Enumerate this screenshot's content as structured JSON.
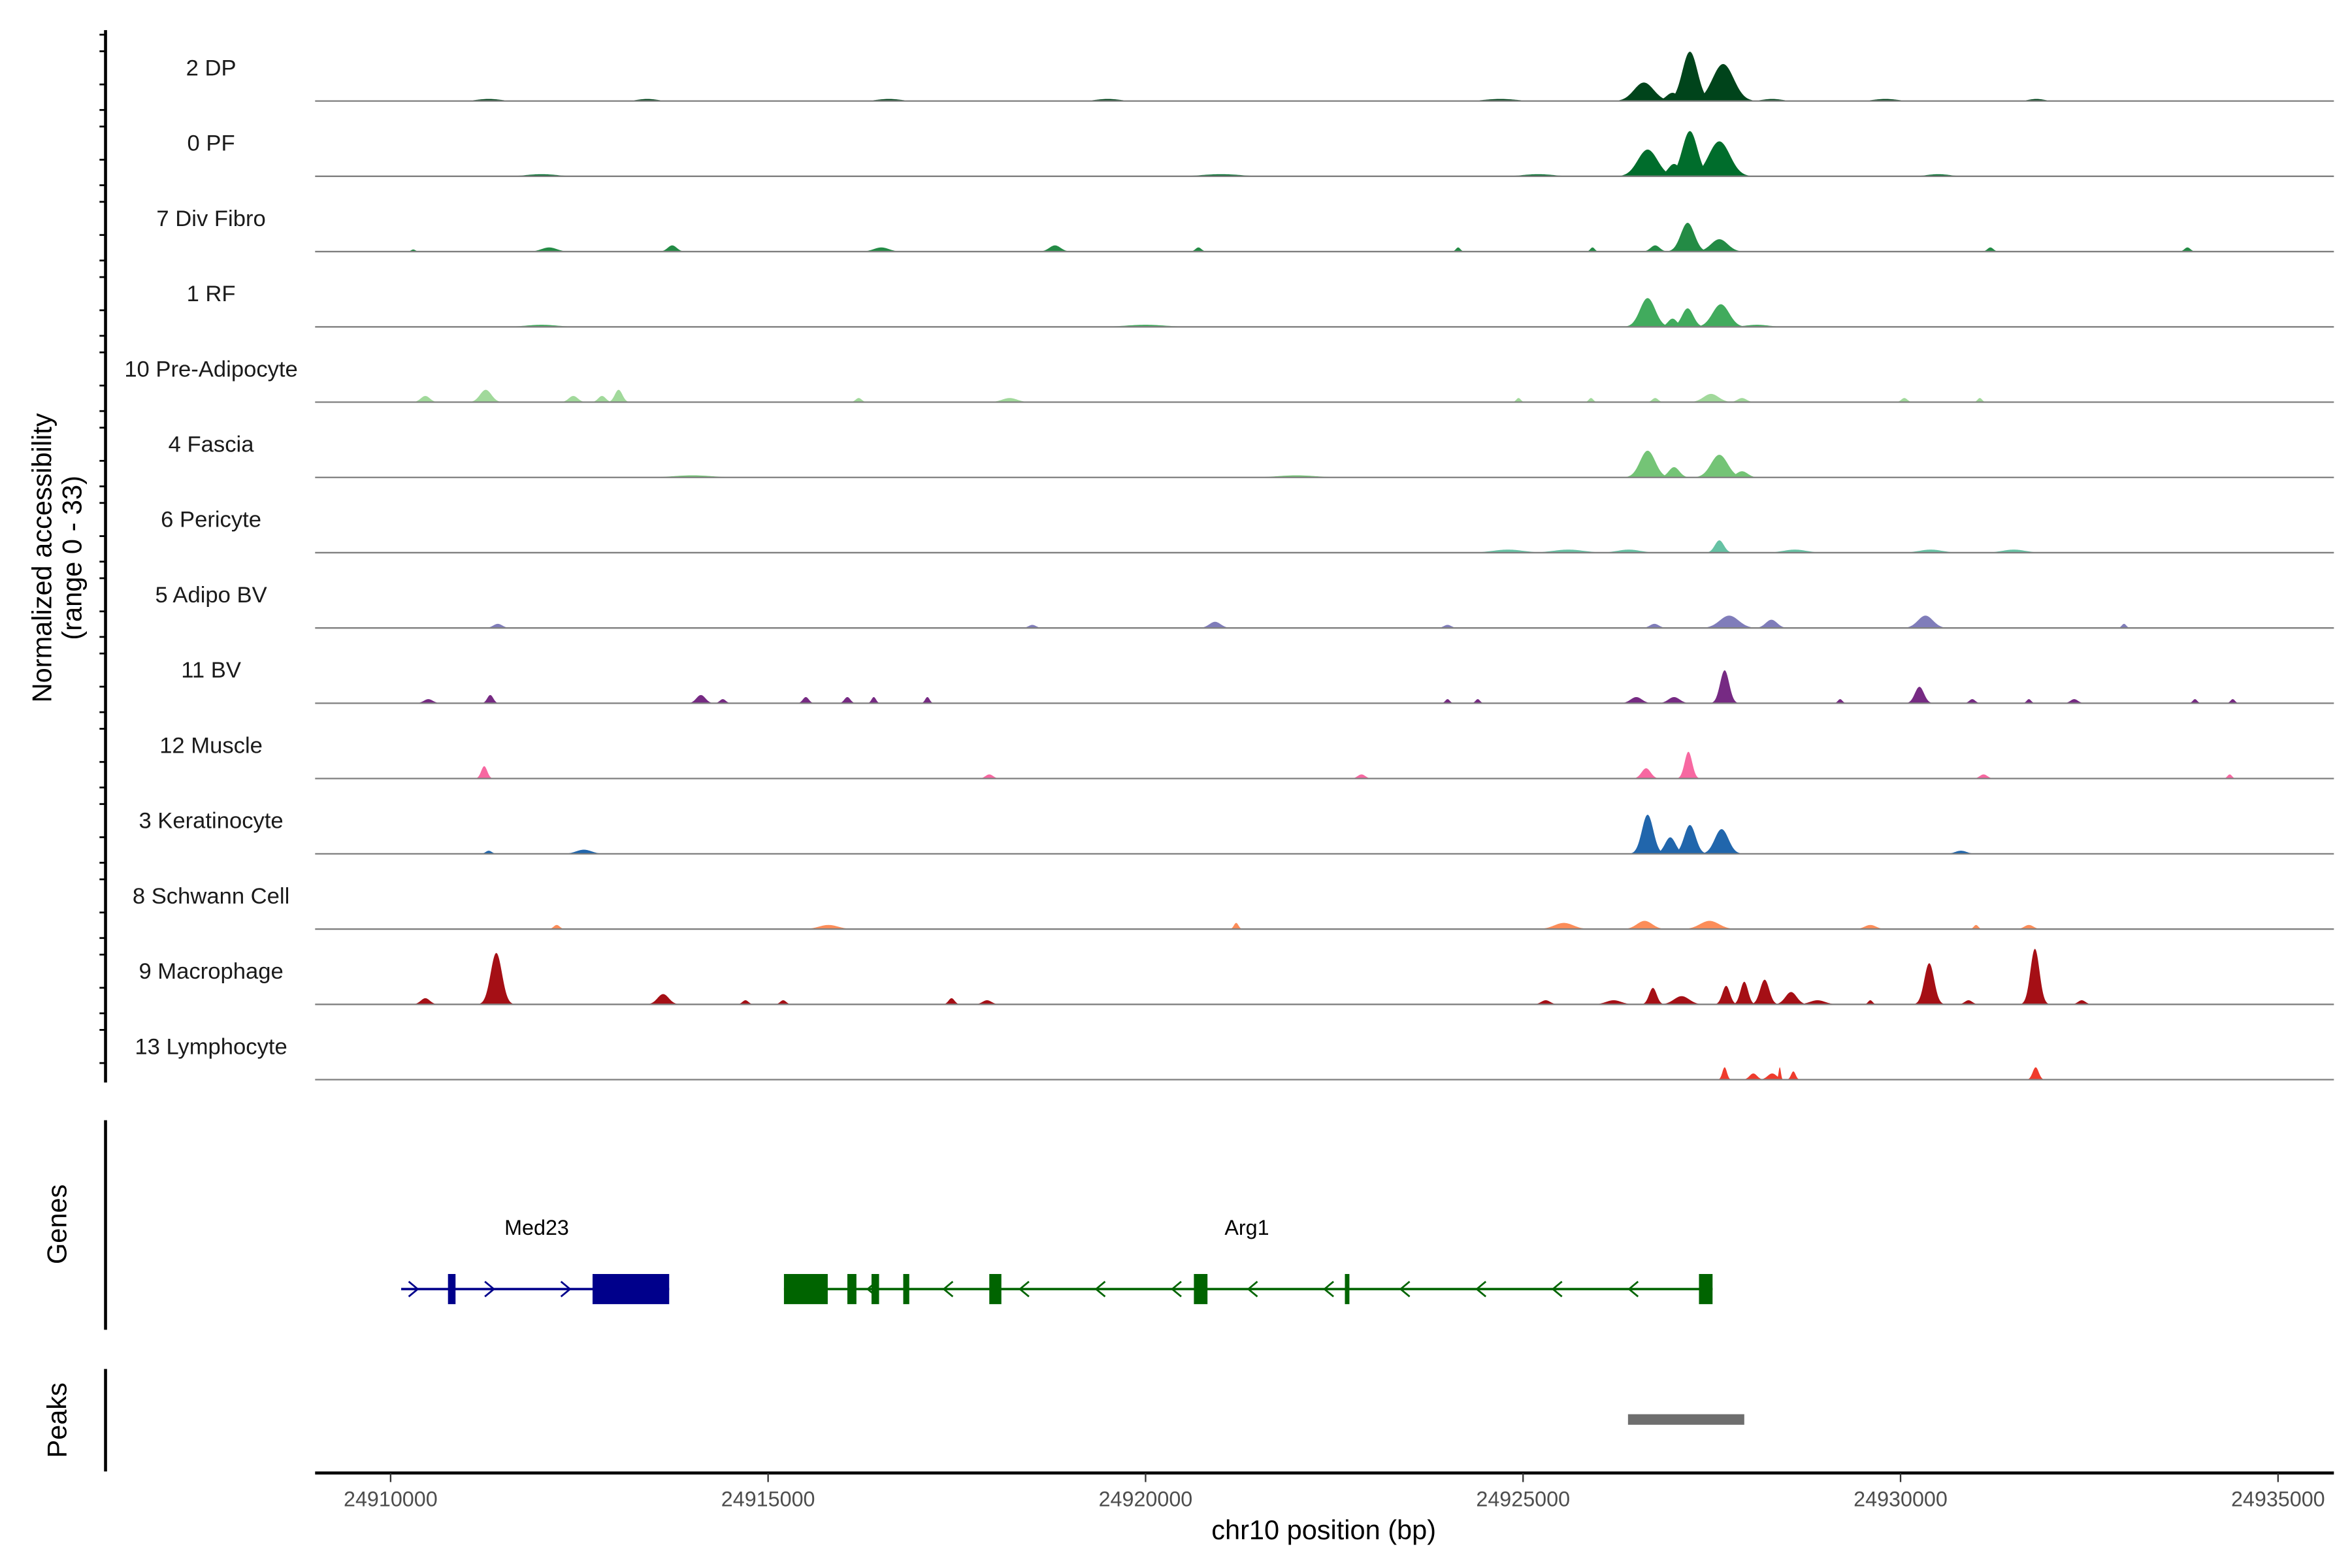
{
  "chart_data": {
    "type": "area",
    "title": "",
    "xlabel": "chr10 position (bp)",
    "ylabel": "Normalized accessibility",
    "ylabel_sub": "(range 0 - 33)",
    "xlim": [
      24909000,
      24935740
    ],
    "ylim": [
      0,
      33
    ],
    "xticks": [
      24910000,
      24915000,
      24920000,
      24925000,
      24930000,
      24935000
    ],
    "xtick_labels": [
      "24910000",
      "24915000",
      "24920000",
      "24925000",
      "24930000",
      "24935000"
    ],
    "tracks": [
      {
        "name": "2 DP",
        "color": "#00441b",
        "peaks": [
          [
            24926600,
            9,
            260
          ],
          [
            24926980,
            4,
            160
          ],
          [
            24927210,
            24,
            200
          ],
          [
            24927650,
            18,
            280
          ],
          [
            24911300,
            1,
            300
          ],
          [
            24913400,
            1,
            250
          ],
          [
            24916600,
            1,
            300
          ],
          [
            24919500,
            1,
            300
          ],
          [
            24924700,
            1,
            400
          ],
          [
            24928300,
            1,
            250
          ],
          [
            24929800,
            1,
            300
          ],
          [
            24931800,
            1,
            200
          ]
        ]
      },
      {
        "name": "0 PF",
        "color": "#006d2c",
        "peaks": [
          [
            24926650,
            13,
            260
          ],
          [
            24927000,
            6,
            160
          ],
          [
            24927210,
            22,
            200
          ],
          [
            24927600,
            17,
            280
          ],
          [
            24912000,
            1,
            400
          ],
          [
            24921000,
            1,
            500
          ],
          [
            24925200,
            1,
            400
          ],
          [
            24930500,
            1,
            300
          ]
        ]
      },
      {
        "name": "7 Div Fibro",
        "color": "#238b45",
        "peaks": [
          [
            24926750,
            3,
            120
          ],
          [
            24927180,
            14,
            180
          ],
          [
            24927600,
            6,
            220
          ],
          [
            24913730,
            3,
            120
          ],
          [
            24918800,
            3,
            150
          ],
          [
            24931190,
            2,
            80
          ],
          [
            24933800,
            2,
            80
          ],
          [
            24924140,
            2,
            60
          ],
          [
            24925920,
            2,
            60
          ],
          [
            24912100,
            2,
            200
          ],
          [
            24916500,
            2,
            200
          ],
          [
            24920700,
            2,
            80
          ],
          [
            24910300,
            1,
            60
          ]
        ]
      },
      {
        "name": "1 RF",
        "color": "#41ab5d",
        "peaks": [
          [
            24926650,
            14,
            200
          ],
          [
            24926980,
            4,
            120
          ],
          [
            24927180,
            9,
            150
          ],
          [
            24927620,
            11,
            220
          ],
          [
            24928100,
            1,
            300
          ],
          [
            24920000,
            1,
            500
          ],
          [
            24912000,
            1,
            400
          ]
        ]
      },
      {
        "name": "10 Pre-Adipocyte",
        "color": "#a1d99b",
        "peaks": [
          [
            24911260,
            6,
            150
          ],
          [
            24913020,
            6,
            100
          ],
          [
            24910460,
            3,
            120
          ],
          [
            24912420,
            3,
            120
          ],
          [
            24912800,
            3,
            100
          ],
          [
            24927490,
            4,
            200
          ],
          [
            24926750,
            2,
            80
          ],
          [
            24925900,
            2,
            60
          ],
          [
            24930050,
            2,
            80
          ],
          [
            24931050,
            2,
            60
          ],
          [
            24924940,
            2,
            60
          ],
          [
            24918200,
            2,
            200
          ],
          [
            24916200,
            2,
            80
          ],
          [
            24927900,
            2,
            120
          ]
        ]
      },
      {
        "name": "4 Fascia",
        "color": "#74c476",
        "peaks": [
          [
            24926650,
            13,
            200
          ],
          [
            24927000,
            5,
            140
          ],
          [
            24927600,
            11,
            220
          ],
          [
            24927900,
            3,
            150
          ],
          [
            24914000,
            1,
            500
          ],
          [
            24922000,
            1,
            500
          ]
        ]
      },
      {
        "name": "6 Pericyte",
        "color": "#66c2a4",
        "peaks": [
          [
            24927600,
            6,
            120
          ],
          [
            24924800,
            1.5,
            400
          ],
          [
            24925600,
            1.5,
            400
          ],
          [
            24926400,
            1.5,
            300
          ],
          [
            24928600,
            1.5,
            300
          ],
          [
            24930400,
            1.5,
            300
          ],
          [
            24931500,
            1.5,
            300
          ]
        ]
      },
      {
        "name": "5 Adipo BV",
        "color": "#807dba",
        "peaks": [
          [
            24927730,
            6,
            250
          ],
          [
            24928290,
            4,
            150
          ],
          [
            24930330,
            6,
            200
          ],
          [
            24926740,
            2,
            120
          ],
          [
            24920920,
            3,
            150
          ],
          [
            24932960,
            2,
            60
          ],
          [
            24911420,
            2,
            120
          ],
          [
            24924000,
            1.5,
            100
          ],
          [
            24918500,
            1.5,
            100
          ]
        ]
      },
      {
        "name": "11 BV",
        "color": "#762a83",
        "peaks": [
          [
            24927670,
            16,
            120
          ],
          [
            24930250,
            8,
            120
          ],
          [
            24926500,
            3,
            150
          ],
          [
            24927000,
            3,
            150
          ],
          [
            24911320,
            4,
            80
          ],
          [
            24910500,
            2,
            120
          ],
          [
            24914110,
            4,
            120
          ],
          [
            24914400,
            2,
            80
          ],
          [
            24915500,
            3,
            80
          ],
          [
            24916050,
            3,
            80
          ],
          [
            24916400,
            3,
            60
          ],
          [
            24917110,
            3,
            60
          ],
          [
            24924000,
            2,
            60
          ],
          [
            24924400,
            2,
            60
          ],
          [
            24929200,
            2,
            60
          ],
          [
            24930950,
            2,
            80
          ],
          [
            24931700,
            2,
            60
          ],
          [
            24932300,
            2,
            100
          ],
          [
            24933900,
            2,
            60
          ],
          [
            24934400,
            2,
            60
          ]
        ]
      },
      {
        "name": "12 Muscle",
        "color": "#f768a1",
        "peaks": [
          [
            24911240,
            6,
            80
          ],
          [
            24926630,
            5,
            120
          ],
          [
            24927190,
            13,
            100
          ],
          [
            24917930,
            2,
            100
          ],
          [
            24922860,
            2,
            100
          ],
          [
            24931100,
            2,
            100
          ],
          [
            24934360,
            2,
            60
          ]
        ]
      },
      {
        "name": "3 Keratinocyte",
        "color": "#2166ac",
        "peaks": [
          [
            24926650,
            19,
            150
          ],
          [
            24926950,
            8,
            140
          ],
          [
            24927210,
            14,
            150
          ],
          [
            24927630,
            12,
            180
          ],
          [
            24912560,
            2,
            200
          ],
          [
            24911300,
            1.5,
            80
          ],
          [
            24930800,
            1.5,
            150
          ]
        ]
      },
      {
        "name": "8 Schwann Cell",
        "color": "#fc8d59",
        "peaks": [
          [
            24926610,
            4,
            200
          ],
          [
            24927470,
            4,
            250
          ],
          [
            24925540,
            3,
            250
          ],
          [
            24921200,
            3,
            60
          ],
          [
            24912200,
            2,
            80
          ],
          [
            24915800,
            2,
            250
          ],
          [
            24929600,
            2,
            150
          ],
          [
            24931000,
            2,
            60
          ],
          [
            24931700,
            2,
            120
          ]
        ]
      },
      {
        "name": "9 Macrophage",
        "color": "#a50f15",
        "peaks": [
          [
            24911400,
            25,
            150
          ],
          [
            24931780,
            27,
            120
          ],
          [
            24930380,
            20,
            130
          ],
          [
            24928200,
            12,
            120
          ],
          [
            24927930,
            11,
            100
          ],
          [
            24927690,
            9,
            100
          ],
          [
            24926720,
            8,
            100
          ],
          [
            24928550,
            6,
            150
          ],
          [
            24913610,
            5,
            150
          ],
          [
            24910460,
            3,
            120
          ],
          [
            24917430,
            3,
            80
          ],
          [
            24914700,
            2,
            80
          ],
          [
            24915200,
            2,
            80
          ],
          [
            24917900,
            2,
            120
          ],
          [
            24925300,
            2,
            120
          ],
          [
            24926200,
            2,
            200
          ],
          [
            24927100,
            4,
            200
          ],
          [
            24928900,
            2,
            200
          ],
          [
            24929600,
            2,
            60
          ],
          [
            24930900,
            2,
            100
          ],
          [
            24932400,
            2,
            100
          ]
        ]
      },
      {
        "name": "13 Lymphocyte",
        "color": "#ef3b2c",
        "peaks": [
          [
            24927670,
            6,
            60
          ],
          [
            24928050,
            3,
            100
          ],
          [
            24928300,
            3,
            120
          ],
          [
            24928400,
            6,
            30
          ],
          [
            24928580,
            4,
            60
          ],
          [
            24931790,
            6,
            80
          ]
        ]
      }
    ],
    "genes_label": "Genes",
    "genes": [
      {
        "name": "Med23",
        "strand": "+",
        "color": "#00008b",
        "start": 24910140,
        "end": 24913690,
        "exons": [
          [
            24910760,
            24910860
          ],
          [
            24912675,
            24913690
          ]
        ]
      },
      {
        "name": "Arg1",
        "strand": "-",
        "color": "#006400",
        "start": 24915210,
        "end": 24927510,
        "exons": [
          [
            24915210,
            24915790
          ],
          [
            24916050,
            24916170
          ],
          [
            24916370,
            24916470
          ],
          [
            24916790,
            24916870
          ],
          [
            24917930,
            24918090
          ],
          [
            24920640,
            24920820
          ],
          [
            24922640,
            24922700
          ],
          [
            24927330,
            24927510
          ]
        ]
      }
    ],
    "peaks_label": "Peaks",
    "peak_regions": [
      [
        24926390,
        24927930
      ]
    ],
    "peak_color": "#6e6e6e"
  }
}
